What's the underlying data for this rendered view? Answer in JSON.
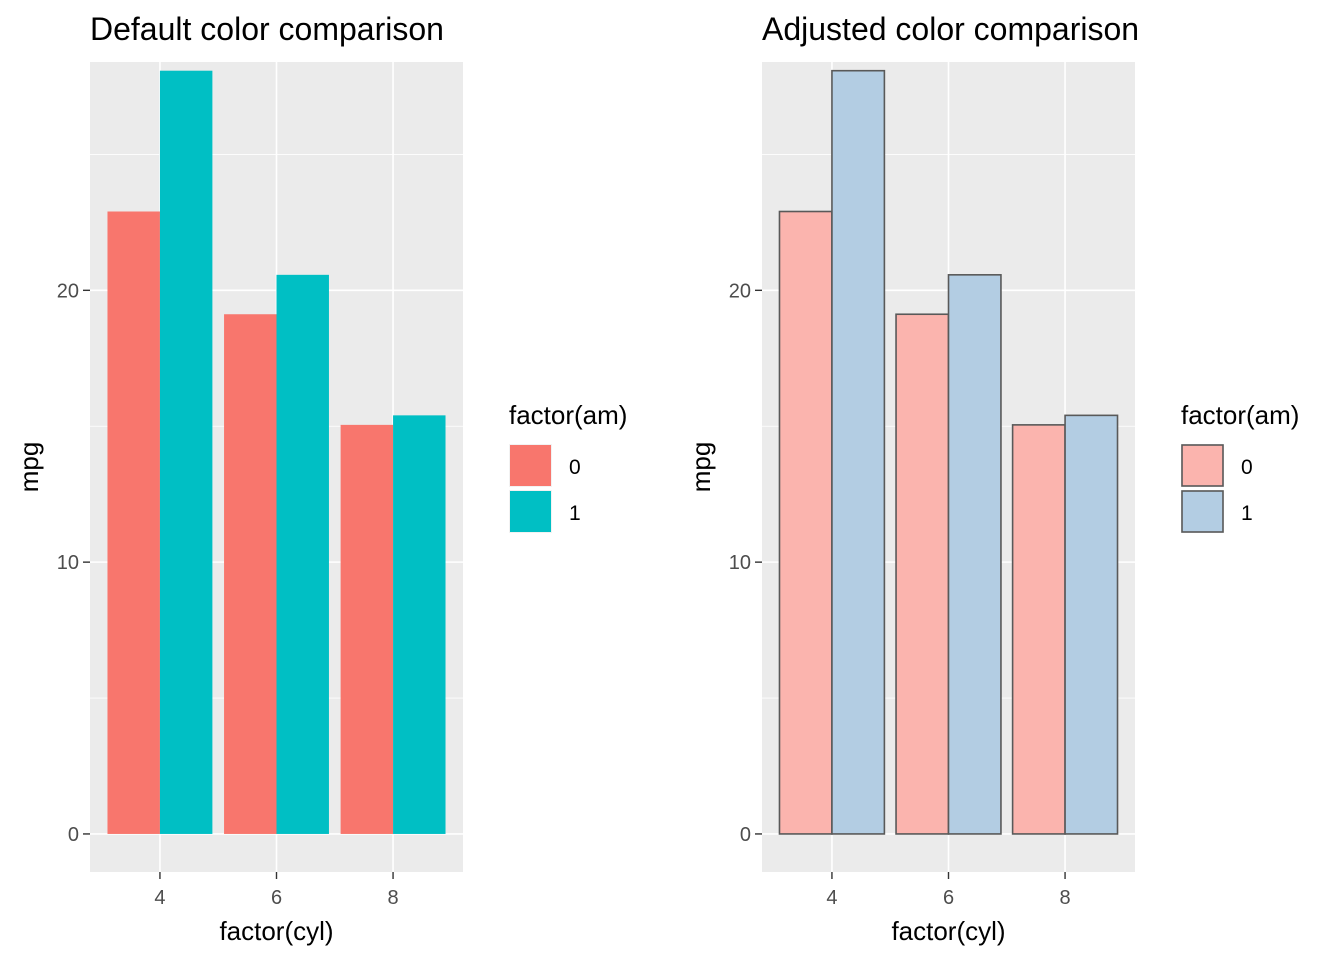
{
  "chart_data": [
    {
      "type": "bar",
      "title": "Default color comparison",
      "xlabel": "factor(cyl)",
      "ylabel": "mpg",
      "categories": [
        "4",
        "6",
        "8"
      ],
      "ylim": [
        -1.4,
        28.4
      ],
      "yticks": [
        0,
        10,
        20
      ],
      "grid": true,
      "background": "#ebebeb",
      "bar_outline": null,
      "legend": {
        "title": "factor(am)",
        "placement": "right"
      },
      "series": [
        {
          "name": "0",
          "color": "#f8766d",
          "values": [
            22.9,
            19.12,
            15.05
          ]
        },
        {
          "name": "1",
          "color": "#00bfc4",
          "values": [
            28.08,
            20.57,
            15.4
          ]
        }
      ]
    },
    {
      "type": "bar",
      "title": "Adjusted color comparison",
      "xlabel": "factor(cyl)",
      "ylabel": "mpg",
      "categories": [
        "4",
        "6",
        "8"
      ],
      "ylim": [
        -1.4,
        28.4
      ],
      "yticks": [
        0,
        10,
        20
      ],
      "grid": true,
      "background": "#ebebeb",
      "bar_outline": "#595959",
      "legend": {
        "title": "factor(am)",
        "placement": "right"
      },
      "series": [
        {
          "name": "0",
          "color": "#fbb4ae",
          "values": [
            22.9,
            19.12,
            15.05
          ]
        },
        {
          "name": "1",
          "color": "#b3cde3",
          "values": [
            28.08,
            20.57,
            15.4
          ]
        }
      ]
    }
  ]
}
